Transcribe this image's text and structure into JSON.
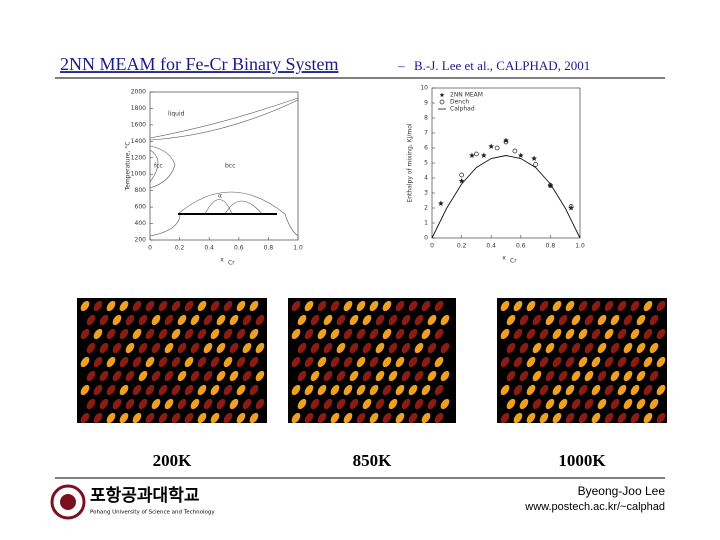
{
  "header": {
    "title": "2NN MEAM for Fe-Cr Binary System",
    "dash": "–",
    "citation": "B.-J. Lee et al., CALPHAD, 2001"
  },
  "figures": {
    "phase_diagram": {
      "ylabel": "Temperature, °C",
      "xlabel": "x",
      "xlabel_sub": "Cr",
      "xlim": [
        0,
        1
      ],
      "ylim": [
        200,
        2000
      ],
      "xticks": [
        0,
        0.2,
        0.4,
        0.6,
        0.8,
        {
          "value": 1,
          "label": "1.0"
        }
      ],
      "yticks": [
        200,
        400,
        600,
        800,
        1000,
        1200,
        1400,
        1600,
        1800,
        2000
      ],
      "regions": {
        "liquid": "liquid",
        "fcc": "fcc",
        "bcc": "bcc",
        "alpha": "α"
      }
    },
    "enthalpy": {
      "ylabel": "Enthalpy of mixing, KJ/mol",
      "xlabel": "x",
      "xlabel_sub": "Cr",
      "xlim": [
        0,
        1
      ],
      "ylim": [
        0,
        10
      ],
      "xticks": [
        0,
        0.2,
        0.4,
        0.6,
        0.8,
        {
          "value": 1,
          "label": "1.0"
        }
      ],
      "yticks": [
        0,
        1,
        2,
        3,
        4,
        5,
        6,
        7,
        8,
        9,
        10
      ],
      "series": [
        {
          "name": "2NN MEAM",
          "marker": "star",
          "x": [
            0.06,
            0.2,
            0.27,
            0.35,
            0.4,
            0.5,
            0.6,
            0.69,
            0.8,
            0.94
          ],
          "values": [
            2.3,
            3.8,
            5.5,
            5.5,
            6.1,
            6.5,
            5.5,
            5.3,
            3.5,
            2.0
          ]
        },
        {
          "name": "Dench",
          "marker": "circle",
          "x": [
            0.2,
            0.3,
            0.44,
            0.5,
            0.56,
            0.7,
            0.8,
            0.94
          ],
          "values": [
            4.2,
            5.6,
            6.0,
            6.4,
            5.8,
            4.9,
            3.5,
            2.1
          ]
        },
        {
          "name": "Calphad",
          "marker": "line",
          "x": [
            0,
            0.1,
            0.2,
            0.3,
            0.4,
            0.5,
            0.6,
            0.7,
            0.8,
            0.9,
            1
          ],
          "values": [
            0,
            2.0,
            3.6,
            4.7,
            5.3,
            5.5,
            5.3,
            4.7,
            3.6,
            2.0,
            0
          ]
        }
      ]
    }
  },
  "snapshots": [
    {
      "label": "200K"
    },
    {
      "label": "850K"
    },
    {
      "label": "1000K"
    }
  ],
  "footer": {
    "logo_korean": "포항공과대학교",
    "logo_english": "Pohang University of Science and Technology",
    "author": "Byeong-Joo Lee",
    "url": "www.postech.ac.kr/~calphad"
  }
}
